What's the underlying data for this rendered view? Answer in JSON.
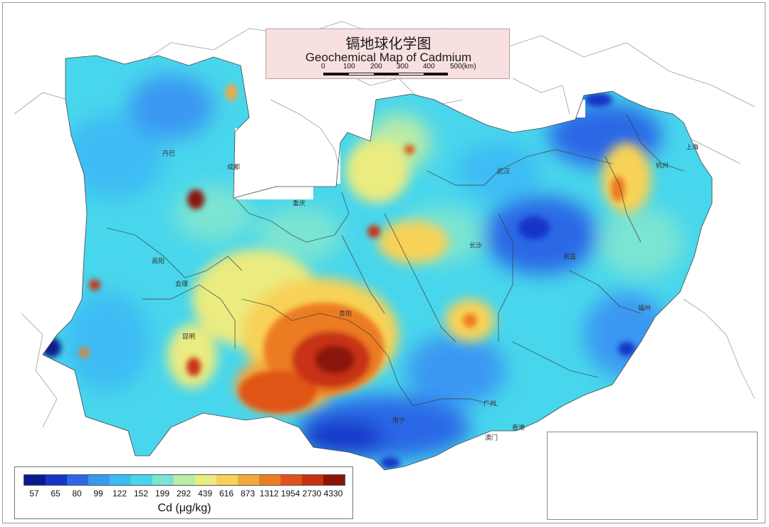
{
  "map": {
    "title_cn": "镉地球化学图",
    "title_en": "Geochemical Map of Cadmium",
    "scale_labels": [
      "0",
      "100",
      "200",
      "300",
      "400",
      "500(km)"
    ]
  },
  "legend": {
    "title": "Cd (μg/kg)",
    "labels": [
      "57",
      "65",
      "80",
      "99",
      "122",
      "152",
      "199",
      "292",
      "439",
      "616",
      "873",
      "1312",
      "1954",
      "2730",
      "4330"
    ],
    "colors": [
      "#0a1a8c",
      "#1536c8",
      "#2a68e6",
      "#3a98f2",
      "#3cbcf4",
      "#48d6ec",
      "#7ce4d2",
      "#bceca6",
      "#eaeb80",
      "#f8d257",
      "#f4a83a",
      "#ec7c22",
      "#e05418",
      "#c83012",
      "#8a1408"
    ]
  },
  "cities": [
    {
      "name": "成都",
      "key": "chengdu"
    },
    {
      "name": "重庆",
      "key": "chongqing"
    },
    {
      "name": "武汉",
      "key": "wuhan"
    },
    {
      "name": "长沙",
      "key": "changsha"
    },
    {
      "name": "上海",
      "key": "shanghai"
    },
    {
      "name": "昆明",
      "key": "kunming"
    },
    {
      "name": "贵阳",
      "key": "guiyang"
    },
    {
      "name": "南宁",
      "key": "nanning"
    },
    {
      "name": "广州",
      "key": "guangzhou"
    },
    {
      "name": "香港",
      "key": "hongkong"
    },
    {
      "name": "澳门",
      "key": "macau"
    },
    {
      "name": "福州",
      "key": "fuzhou"
    },
    {
      "name": "南昌",
      "key": "nanchang"
    },
    {
      "name": "杭州",
      "key": "hangzhou"
    },
    {
      "name": "丹巴",
      "key": "danba"
    },
    {
      "name": "高阳",
      "key": "gaoyang"
    },
    {
      "name": "会理",
      "key": "huili"
    }
  ],
  "palette": {
    "low": "#1536c8",
    "mid": "#48d6ec",
    "high": "#e05418",
    "peak": "#8a1408",
    "boundary": "#3a3a3a"
  }
}
